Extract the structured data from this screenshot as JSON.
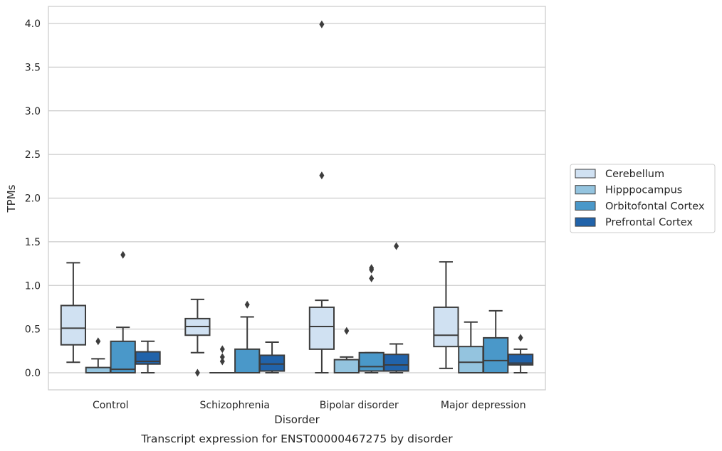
{
  "chart_data": {
    "type": "box",
    "caption": "Transcript expression for ENST00000467275 by disorder",
    "xlabel": "Disorder",
    "ylabel": "TPMs",
    "ylim": [
      -0.19,
      4.19
    ],
    "yticks": [
      "0.0",
      "0.5",
      "1.0",
      "1.5",
      "2.0",
      "2.5",
      "3.0",
      "3.5",
      "4.0"
    ],
    "grid": "horizontal",
    "legend_position": "right",
    "categories": [
      "Control",
      "Schizophrenia",
      "Bipolar disorder",
      "Major depression"
    ],
    "series": [
      {
        "name": "Cerebellum",
        "color": "#d0e1f2",
        "boxes": [
          {
            "whislo": 0.12,
            "q1": 0.32,
            "median": 0.51,
            "q3": 0.77,
            "whishi": 1.26,
            "fliers": []
          },
          {
            "whislo": 0.23,
            "q1": 0.43,
            "median": 0.53,
            "q3": 0.62,
            "whishi": 0.84,
            "fliers": [
              0.0
            ]
          },
          {
            "whislo": 0.0,
            "q1": 0.27,
            "median": 0.53,
            "q3": 0.75,
            "whishi": 0.83,
            "fliers": [
              2.26,
              3.99
            ]
          },
          {
            "whislo": 0.05,
            "q1": 0.3,
            "median": 0.43,
            "q3": 0.75,
            "whishi": 1.27,
            "fliers": []
          }
        ]
      },
      {
        "name": "Hipppocampus",
        "color": "#94c4df",
        "boxes": [
          {
            "whislo": 0.0,
            "q1": 0.0,
            "median": 0.0,
            "q3": 0.06,
            "whishi": 0.16,
            "fliers": [
              0.36
            ]
          },
          {
            "whislo": 0.0,
            "q1": 0.0,
            "median": 0.0,
            "q3": 0.0,
            "whishi": 0.0,
            "fliers": [
              0.13,
              0.18,
              0.27
            ]
          },
          {
            "whislo": 0.0,
            "q1": 0.0,
            "median": 0.0,
            "q3": 0.15,
            "whishi": 0.18,
            "fliers": [
              0.48
            ]
          },
          {
            "whislo": 0.0,
            "q1": 0.0,
            "median": 0.12,
            "q3": 0.3,
            "whishi": 0.58,
            "fliers": []
          }
        ]
      },
      {
        "name": "Orbitofontal Cortex",
        "color": "#4a98c9",
        "boxes": [
          {
            "whislo": 0.0,
            "q1": 0.0,
            "median": 0.04,
            "q3": 0.36,
            "whishi": 0.52,
            "fliers": [
              1.35
            ]
          },
          {
            "whislo": 0.0,
            "q1": 0.0,
            "median": 0.0,
            "q3": 0.27,
            "whishi": 0.64,
            "fliers": [
              0.78
            ]
          },
          {
            "whislo": 0.0,
            "q1": 0.02,
            "median": 0.07,
            "q3": 0.23,
            "whishi": 0.23,
            "fliers": [
              1.08,
              1.18,
              1.2
            ]
          },
          {
            "whislo": 0.0,
            "q1": 0.0,
            "median": 0.14,
            "q3": 0.4,
            "whishi": 0.71,
            "fliers": []
          }
        ]
      },
      {
        "name": "Prefrontal Cortex",
        "color": "#2163aa",
        "boxes": [
          {
            "whislo": 0.0,
            "q1": 0.1,
            "median": 0.13,
            "q3": 0.24,
            "whishi": 0.36,
            "fliers": []
          },
          {
            "whislo": 0.0,
            "q1": 0.02,
            "median": 0.1,
            "q3": 0.2,
            "whishi": 0.35,
            "fliers": []
          },
          {
            "whislo": 0.0,
            "q1": 0.02,
            "median": 0.09,
            "q3": 0.21,
            "whishi": 0.33,
            "fliers": [
              1.45
            ]
          },
          {
            "whislo": 0.0,
            "q1": 0.09,
            "median": 0.11,
            "q3": 0.21,
            "whishi": 0.27,
            "fliers": [
              0.4
            ]
          }
        ]
      }
    ]
  }
}
